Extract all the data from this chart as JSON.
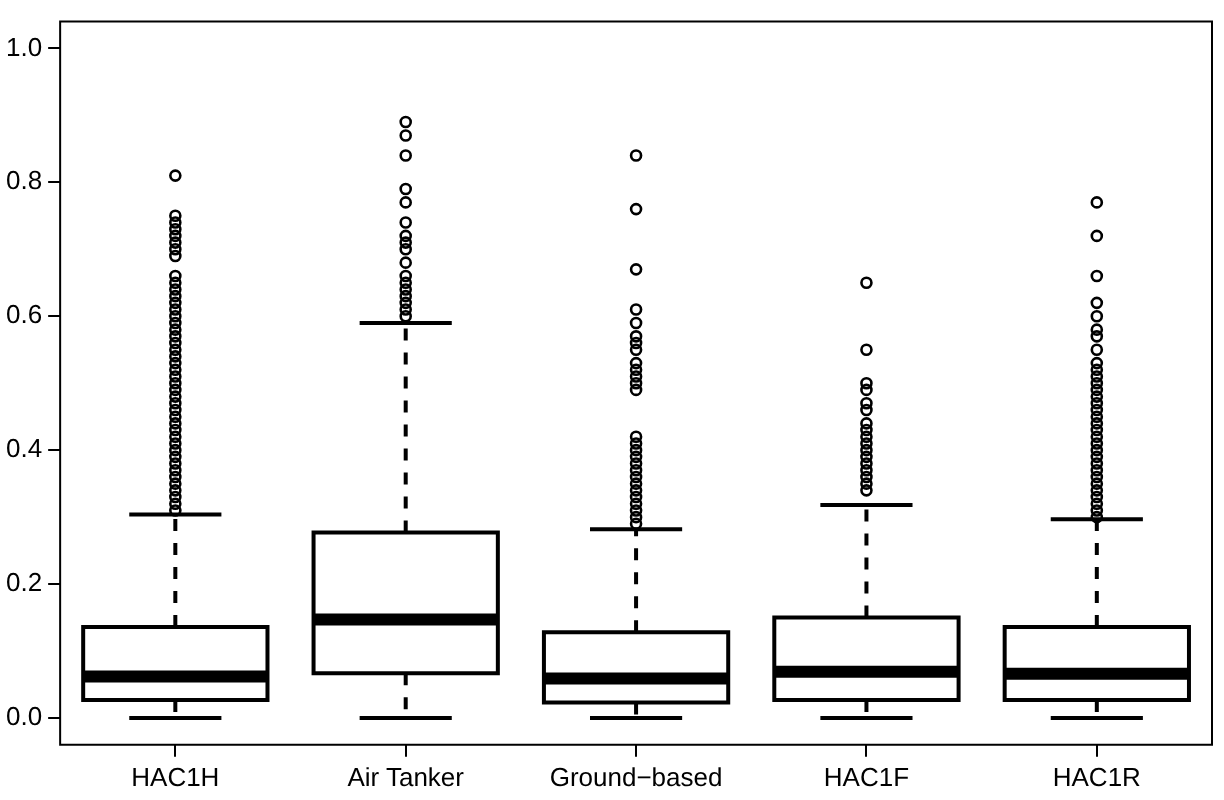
{
  "chart_data": {
    "type": "box",
    "categories": [
      "HAC1H",
      "Air Tanker",
      "Ground−based",
      "HAC1F",
      "HAC1R"
    ],
    "color": "#000000",
    "ylim": [
      -0.04,
      1.04
    ],
    "yticks": [
      {
        "value": 0,
        "label": "0.0"
      },
      {
        "value": 0.2,
        "label": "0.2"
      },
      {
        "value": 0.4,
        "label": "0.4"
      },
      {
        "value": 0.6,
        "label": "0.6"
      },
      {
        "value": 0.8,
        "label": "0.8"
      },
      {
        "value": 1,
        "label": "1.0"
      }
    ],
    "grid": false,
    "marker": "circle",
    "boxes": [
      {
        "low": 0,
        "q1": 0.027,
        "median": 0.062,
        "q3": 0.136,
        "high": 0.304,
        "outliers": [
          0.31,
          0.32,
          0.33,
          0.34,
          0.35,
          0.36,
          0.37,
          0.38,
          0.39,
          0.4,
          0.41,
          0.42,
          0.43,
          0.44,
          0.45,
          0.46,
          0.47,
          0.48,
          0.49,
          0.5,
          0.51,
          0.52,
          0.53,
          0.54,
          0.55,
          0.56,
          0.57,
          0.58,
          0.59,
          0.6,
          0.61,
          0.62,
          0.63,
          0.64,
          0.65,
          0.66,
          0.69,
          0.7,
          0.71,
          0.72,
          0.73,
          0.74,
          0.75,
          0.81
        ]
      },
      {
        "low": 0,
        "q1": 0.067,
        "median": 0.147,
        "q3": 0.277,
        "high": 0.59,
        "outliers": [
          0.6,
          0.61,
          0.62,
          0.63,
          0.64,
          0.65,
          0.66,
          0.68,
          0.7,
          0.71,
          0.72,
          0.74,
          0.77,
          0.79,
          0.84,
          0.87,
          0.89
        ]
      },
      {
        "low": 0,
        "q1": 0.023,
        "median": 0.059,
        "q3": 0.128,
        "high": 0.282,
        "outliers": [
          0.29,
          0.3,
          0.31,
          0.32,
          0.33,
          0.34,
          0.35,
          0.36,
          0.37,
          0.38,
          0.39,
          0.4,
          0.41,
          0.42,
          0.49,
          0.5,
          0.51,
          0.52,
          0.53,
          0.55,
          0.56,
          0.57,
          0.59,
          0.61,
          0.67,
          0.76,
          0.84
        ]
      },
      {
        "low": 0,
        "q1": 0.027,
        "median": 0.069,
        "q3": 0.15,
        "high": 0.318,
        "outliers": [
          0.34,
          0.35,
          0.36,
          0.37,
          0.38,
          0.39,
          0.4,
          0.41,
          0.42,
          0.43,
          0.44,
          0.46,
          0.47,
          0.49,
          0.5,
          0.55,
          0.65
        ]
      },
      {
        "low": 0,
        "q1": 0.027,
        "median": 0.066,
        "q3": 0.136,
        "high": 0.297,
        "outliers": [
          0.3,
          0.31,
          0.32,
          0.33,
          0.34,
          0.35,
          0.36,
          0.37,
          0.38,
          0.39,
          0.4,
          0.41,
          0.42,
          0.43,
          0.44,
          0.45,
          0.46,
          0.47,
          0.48,
          0.49,
          0.5,
          0.51,
          0.52,
          0.53,
          0.55,
          0.57,
          0.58,
          0.6,
          0.62,
          0.66,
          0.72,
          0.77
        ]
      }
    ]
  }
}
